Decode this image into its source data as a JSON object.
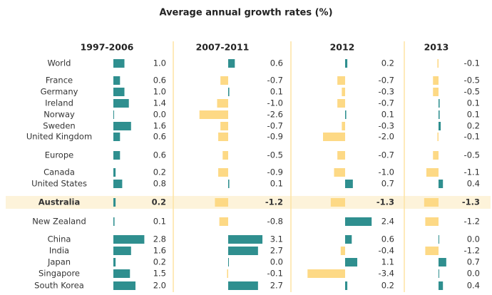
{
  "chart_data": {
    "type": "bar",
    "title": "Average annual growth rates (%)",
    "categories": [
      "World",
      "France",
      "Germany",
      "Ireland",
      "Norway",
      "Sweden",
      "United Kingdom",
      "Europe",
      "Canada",
      "United States",
      "Australia",
      "New Zealand",
      "China",
      "India",
      "Japan",
      "Singapore",
      "South Korea"
    ],
    "highlight": "Australia",
    "positive_color": "#2f8f8f",
    "negative_color": "#fdd985",
    "series": [
      {
        "name": "1997-2006",
        "values": [
          1.0,
          0.6,
          1.0,
          1.4,
          0.0,
          1.6,
          0.6,
          0.6,
          0.2,
          0.8,
          0.2,
          0.1,
          2.8,
          1.6,
          0.2,
          1.5,
          2.0
        ],
        "value_labels": [
          "1.0",
          "0.6",
          "1.0",
          "1.4",
          "0.0",
          "1.6",
          "0.6",
          "0.6",
          "0.2",
          "0.8",
          "0.2",
          "0.1",
          "2.8",
          "1.6",
          "0.2",
          "1.5",
          "2.0"
        ]
      },
      {
        "name": "2007-2011",
        "values": [
          0.6,
          -0.7,
          0.1,
          -1.0,
          -2.6,
          -0.7,
          -0.9,
          -0.5,
          -0.9,
          0.1,
          -1.2,
          -0.8,
          3.1,
          2.7,
          0.0,
          -0.1,
          2.7
        ],
        "value_labels": [
          "0.6",
          "-0.7",
          "0.1",
          "-1.0",
          "-2.6",
          "-0.7",
          "-0.9",
          "-0.5",
          "-0.9",
          "0.1",
          "-1.2",
          "-0.8",
          "3.1",
          "2.7",
          "0.0",
          "-0.1",
          "2.7"
        ]
      },
      {
        "name": "2012",
        "values": [
          0.2,
          -0.7,
          -0.3,
          -0.7,
          0.1,
          -0.3,
          -2.0,
          -0.7,
          -1.0,
          0.7,
          -1.3,
          2.4,
          0.6,
          -0.4,
          1.1,
          -3.4,
          0.2
        ],
        "value_labels": [
          "0.2",
          "-0.7",
          "-0.3",
          "-0.7",
          "0.1",
          "-0.3",
          "-2.0",
          "-0.7",
          "-1.0",
          "0.7",
          "-1.3",
          "2.4",
          "0.6",
          "-0.4",
          "1.1",
          "-3.4",
          "0.2"
        ]
      },
      {
        "name": "2013",
        "values": [
          -0.1,
          -0.5,
          -0.5,
          0.1,
          0.1,
          0.2,
          -0.1,
          -0.5,
          -1.1,
          0.4,
          -1.3,
          -1.2,
          0.0,
          -1.2,
          0.7,
          0.0,
          0.4
        ],
        "value_labels": [
          "-0.1",
          "-0.5",
          "-0.5",
          "0.1",
          "0.1",
          "0.2",
          "-0.1",
          "-0.5",
          "-1.1",
          "0.4",
          "-1.3",
          "-1.2",
          "0.0",
          "-1.2",
          "0.7",
          "0.0",
          "0.4"
        ]
      }
    ]
  }
}
